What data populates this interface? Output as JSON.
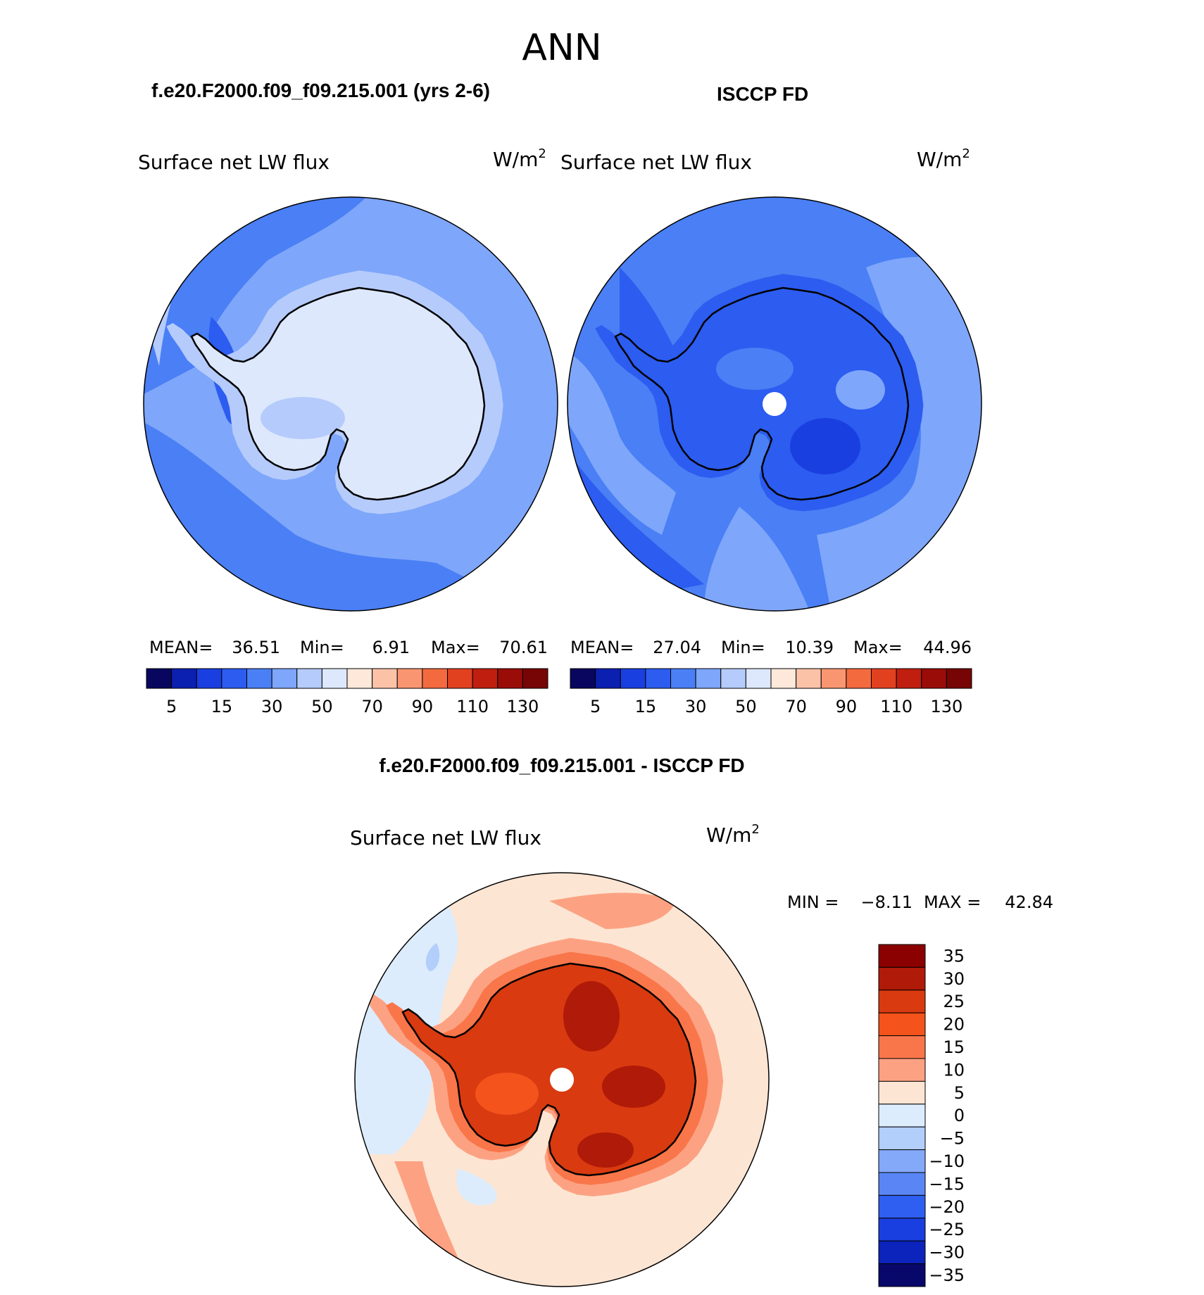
{
  "page_title": "ANN",
  "panels": [
    {
      "id": "model",
      "header": "f.e20.F2000.f09_f09.215.001 (yrs 2-6)",
      "variable": "Surface net LW flux",
      "units": "W/m",
      "units_sup": "2",
      "stats": {
        "mean_label": "MEAN=",
        "mean": "36.51",
        "min_label": "Min=",
        "min": "6.91",
        "max_label": "Max=",
        "max": "70.61"
      }
    },
    {
      "id": "obs",
      "header": "ISCCP FD",
      "variable": "Surface net LW flux",
      "units": "W/m",
      "units_sup": "2",
      "stats": {
        "mean_label": "MEAN=",
        "mean": "27.04",
        "min_label": "Min=",
        "min": "10.39",
        "max_label": "Max=",
        "max": "44.96"
      }
    }
  ],
  "diff": {
    "header": "f.e20.F2000.f09_f09.215.001 - ISCCP FD",
    "variable": "Surface net LW flux",
    "units": "W/m",
    "units_sup": "2",
    "stats": {
      "min_label": "MIN =",
      "min": "−8.11",
      "max_label": "MAX =",
      "max": "42.84"
    }
  },
  "chart_data": [
    {
      "type": "heatmap",
      "projection": "south polar stereographic",
      "title": "f.e20.F2000.f09_f09.215.001 (yrs 2-6)",
      "variable": "Surface net LW flux",
      "units": "W/m2",
      "colorbar": {
        "orientation": "horizontal",
        "tick_labels": [
          "5",
          "15",
          "30",
          "50",
          "70",
          "90",
          "110",
          "130"
        ],
        "colors": [
          "#08065e",
          "#0b20b0",
          "#1a3fe0",
          "#2c5cf0",
          "#4a7ff5",
          "#7ea6fa",
          "#b5cbfc",
          "#dde8fd",
          "#fde8da",
          "#fcc2a8",
          "#f99671",
          "#f46a3f",
          "#e24120",
          "#c01f0f",
          "#9a0c08",
          "#780505"
        ]
      },
      "stats": {
        "mean": 36.51,
        "min": 6.91,
        "max": 70.61
      }
    },
    {
      "type": "heatmap",
      "projection": "south polar stereographic",
      "title": "ISCCP FD",
      "variable": "Surface net LW flux",
      "units": "W/m2",
      "colorbar": {
        "orientation": "horizontal",
        "tick_labels": [
          "5",
          "15",
          "30",
          "50",
          "70",
          "90",
          "110",
          "130"
        ],
        "colors": [
          "#08065e",
          "#0b20b0",
          "#1a3fe0",
          "#2c5cf0",
          "#4a7ff5",
          "#7ea6fa",
          "#b5cbfc",
          "#dde8fd",
          "#fde8da",
          "#fcc2a8",
          "#f99671",
          "#f46a3f",
          "#e24120",
          "#c01f0f",
          "#9a0c08",
          "#780505"
        ]
      },
      "stats": {
        "mean": 27.04,
        "min": 10.39,
        "max": 44.96
      }
    },
    {
      "type": "heatmap",
      "projection": "south polar stereographic",
      "title": "f.e20.F2000.f09_f09.215.001 - ISCCP FD",
      "variable": "Surface net LW flux",
      "units": "W/m2",
      "colorbar": {
        "orientation": "vertical",
        "tick_labels": [
          "35",
          "30",
          "25",
          "20",
          "15",
          "10",
          "5",
          "0",
          "−5",
          "−10",
          "−15",
          "−20",
          "−25",
          "−30",
          "−35"
        ],
        "colors": [
          "#8b0000",
          "#b01a08",
          "#d93a10",
          "#f4531c",
          "#f9764a",
          "#fca283",
          "#fde5d3",
          "#dcecfc",
          "#b2cefb",
          "#85a9f9",
          "#5a86f5",
          "#2f5ff0",
          "#1a3fe0",
          "#0c24bb",
          "#08086b"
        ]
      },
      "stats": {
        "min": -8.11,
        "max": 42.84
      }
    }
  ]
}
